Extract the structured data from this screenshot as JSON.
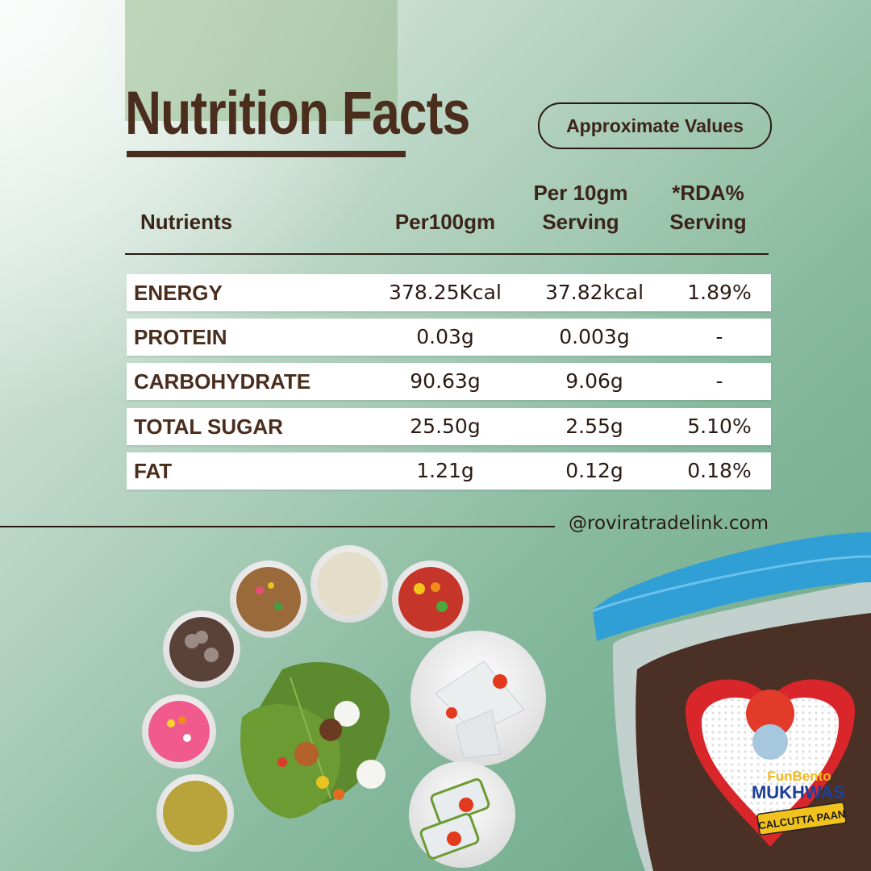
{
  "title": "Nutrition Facts",
  "badge": "Approximate Values",
  "headers": {
    "nutrients": "Nutrients",
    "per100": "Per100gm",
    "per10_line1": "Per 10gm",
    "per10_line2": "Serving",
    "rda_line1": "*RDA%",
    "rda_line2": "Serving"
  },
  "rows": [
    {
      "name": "ENERGY",
      "per100": "378.25Kcal",
      "per10": "37.82kcal",
      "rda": "1.89%"
    },
    {
      "name": "PROTEIN",
      "per100": "0.03g",
      "per10": "0.003g",
      "rda": "-"
    },
    {
      "name": "CARBOHYDRATE",
      "per100": "90.63g",
      "per10": "9.06g",
      "rda": "-"
    },
    {
      "name": "TOTAL SUGAR",
      "per100": "25.50g",
      "per10": "2.55g",
      "rda": "5.10%"
    },
    {
      "name": "FAT",
      "per100": "1.21g",
      "per10": "0.12g",
      "rda": "0.18%"
    }
  ],
  "handle": "@roviratradelink.com",
  "product": {
    "brand": "FunBento",
    "line": "MUKHWAS",
    "flavor": "CALCUTTA PAAN"
  },
  "colors": {
    "title_brown": "#4a2d1d",
    "lid_blue": "#2f9fd6",
    "heart_red": "#d8262b"
  }
}
